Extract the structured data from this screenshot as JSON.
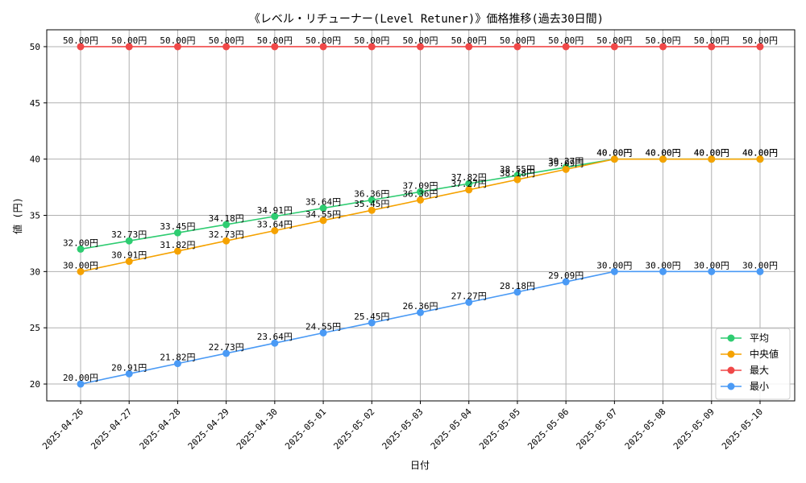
{
  "chart_data": {
    "type": "line",
    "title": "《レベル・リチューナー(Level Retuner)》価格推移(過去30日間)",
    "xlabel": "日付",
    "ylabel": "値 (円)",
    "ylim": [
      18.5,
      51.5
    ],
    "yticks": [
      20,
      25,
      30,
      35,
      40,
      45,
      50
    ],
    "grid": true,
    "legend_position": "lower-right",
    "value_suffix": "円",
    "x": [
      "2025-04-26",
      "2025-04-27",
      "2025-04-28",
      "2025-04-29",
      "2025-04-30",
      "2025-05-01",
      "2025-05-02",
      "2025-05-03",
      "2025-05-04",
      "2025-05-05",
      "2025-05-06",
      "2025-05-07",
      "2025-05-08",
      "2025-05-09",
      "2025-05-10"
    ],
    "series": [
      {
        "name": "平均",
        "color": "#2ecc71",
        "values": [
          32.0,
          32.73,
          33.45,
          34.18,
          34.91,
          35.64,
          36.36,
          37.09,
          37.82,
          38.55,
          39.27,
          40.0,
          40.0,
          40.0,
          40.0
        ]
      },
      {
        "name": "中央値",
        "color": "#f5a200",
        "values": [
          30.0,
          30.91,
          31.82,
          32.73,
          33.64,
          34.55,
          35.45,
          36.36,
          37.27,
          38.18,
          39.09,
          40.0,
          40.0,
          40.0,
          40.0
        ]
      },
      {
        "name": "最大",
        "color": "#f04848",
        "values": [
          50.0,
          50.0,
          50.0,
          50.0,
          50.0,
          50.0,
          50.0,
          50.0,
          50.0,
          50.0,
          50.0,
          50.0,
          50.0,
          50.0,
          50.0
        ]
      },
      {
        "name": "最小",
        "color": "#4a9af5",
        "values": [
          20.0,
          20.91,
          21.82,
          22.73,
          23.64,
          24.55,
          25.45,
          26.36,
          27.27,
          28.18,
          29.09,
          30.0,
          30.0,
          30.0,
          30.0
        ]
      }
    ]
  }
}
